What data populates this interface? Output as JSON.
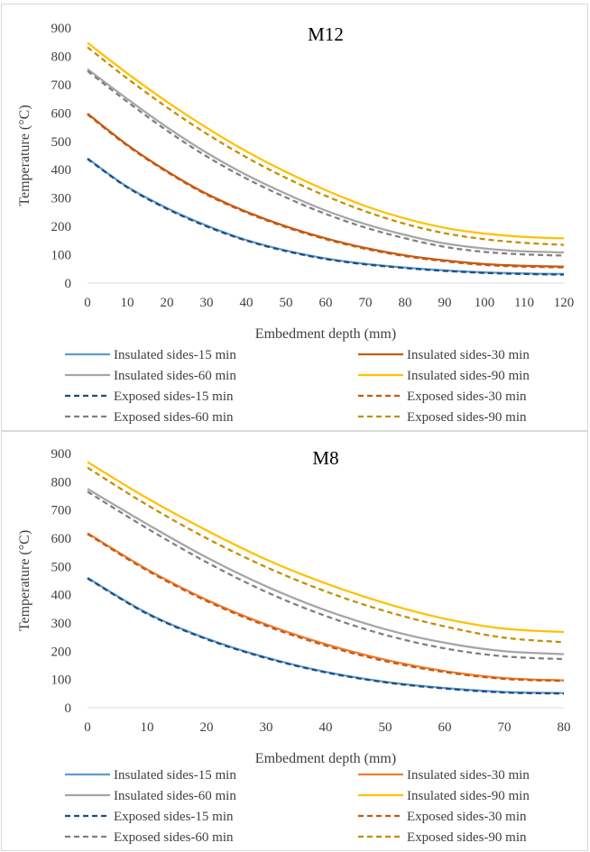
{
  "chart_data": [
    {
      "type": "line",
      "title": "M12",
      "xlabel": "Embedment depth (mm)",
      "ylabel": "Temperature (°C)",
      "xlim": [
        0,
        120
      ],
      "ylim": [
        0,
        900
      ],
      "x_ticks": [
        0,
        10,
        20,
        30,
        40,
        50,
        60,
        70,
        80,
        90,
        100,
        110,
        120
      ],
      "y_ticks": [
        0,
        100,
        200,
        300,
        400,
        500,
        600,
        700,
        800,
        900
      ],
      "grid": false,
      "legend_position": "bottom",
      "x": [
        0,
        10,
        20,
        30,
        40,
        50,
        60,
        70,
        80,
        90,
        100,
        110,
        120
      ],
      "series": [
        {
          "name": "Insulated sides-15 min",
          "color": "#5b9bd5",
          "dash": "solid",
          "values": [
            440,
            340,
            265,
            203,
            152,
            115,
            87,
            68,
            55,
            45,
            38,
            34,
            32
          ]
        },
        {
          "name": "Insulated sides-30 min",
          "color": "#c55a11",
          "dash": "solid",
          "values": [
            598,
            488,
            395,
            315,
            252,
            200,
            158,
            124,
            98,
            80,
            67,
            61,
            58
          ]
        },
        {
          "name": "Insulated sides-60 min",
          "color": "#a5a5a5",
          "dash": "solid",
          "values": [
            755,
            650,
            550,
            460,
            382,
            315,
            256,
            208,
            170,
            140,
            122,
            112,
            108
          ]
        },
        {
          "name": "Insulated sides-90 min",
          "color": "#ffc000",
          "dash": "solid",
          "values": [
            848,
            740,
            640,
            548,
            465,
            392,
            328,
            272,
            228,
            195,
            175,
            163,
            158
          ]
        },
        {
          "name": "Exposed sides-15 min",
          "color": "#1f4e79",
          "dash": "dashed",
          "values": [
            438,
            338,
            262,
            200,
            150,
            113,
            85,
            66,
            53,
            43,
            36,
            32,
            30
          ]
        },
        {
          "name": "Exposed sides-30 min",
          "color": "#c55a11",
          "dash": "dashed",
          "values": [
            595,
            485,
            392,
            312,
            249,
            197,
            155,
            121,
            95,
            77,
            64,
            58,
            55
          ]
        },
        {
          "name": "Exposed sides-60 min",
          "color": "#7f7f7f",
          "dash": "dashed",
          "values": [
            748,
            640,
            538,
            447,
            369,
            302,
            244,
            196,
            158,
            128,
            110,
            101,
            97
          ]
        },
        {
          "name": "Exposed sides-90 min",
          "color": "#bf9000",
          "dash": "dashed",
          "values": [
            832,
            722,
            620,
            527,
            444,
            371,
            308,
            253,
            209,
            176,
            155,
            142,
            135
          ]
        }
      ]
    },
    {
      "type": "line",
      "title": "M8",
      "xlabel": "Embedment depth (mm)",
      "ylabel": "Temperature (°C)",
      "xlim": [
        0,
        80
      ],
      "ylim": [
        0,
        900
      ],
      "x_ticks": [
        0,
        10,
        20,
        30,
        40,
        50,
        60,
        70,
        80
      ],
      "y_ticks": [
        0,
        100,
        200,
        300,
        400,
        500,
        600,
        700,
        800,
        900
      ],
      "grid": false,
      "legend_position": "bottom",
      "x": [
        0,
        10,
        20,
        30,
        40,
        50,
        60,
        70,
        80
      ],
      "series": [
        {
          "name": "Insulated sides-15 min",
          "color": "#5b9bd5",
          "dash": "solid",
          "values": [
            460,
            335,
            245,
            178,
            127,
            92,
            70,
            56,
            52
          ]
        },
        {
          "name": "Insulated sides-30 min",
          "color": "#ed7d31",
          "dash": "solid",
          "values": [
            618,
            490,
            382,
            295,
            225,
            170,
            130,
            105,
            97
          ]
        },
        {
          "name": "Insulated sides-60 min",
          "color": "#a5a5a5",
          "dash": "solid",
          "values": [
            775,
            650,
            532,
            430,
            345,
            278,
            230,
            200,
            190
          ]
        },
        {
          "name": "Insulated sides-90 min",
          "color": "#ffc000",
          "dash": "solid",
          "values": [
            870,
            742,
            628,
            525,
            440,
            370,
            315,
            280,
            268
          ]
        },
        {
          "name": "Exposed sides-15 min",
          "color": "#1f4e79",
          "dash": "dashed",
          "values": [
            458,
            333,
            243,
            176,
            125,
            90,
            68,
            54,
            50
          ]
        },
        {
          "name": "Exposed sides-30 min",
          "color": "#c55a11",
          "dash": "dashed",
          "values": [
            615,
            486,
            378,
            290,
            220,
            165,
            126,
            102,
            95
          ]
        },
        {
          "name": "Exposed sides-60 min",
          "color": "#7f7f7f",
          "dash": "dashed",
          "values": [
            765,
            635,
            515,
            410,
            325,
            258,
            210,
            182,
            172
          ]
        },
        {
          "name": "Exposed sides-90 min",
          "color": "#bf9000",
          "dash": "dashed",
          "values": [
            850,
            718,
            600,
            498,
            412,
            342,
            288,
            248,
            232
          ]
        }
      ]
    }
  ]
}
